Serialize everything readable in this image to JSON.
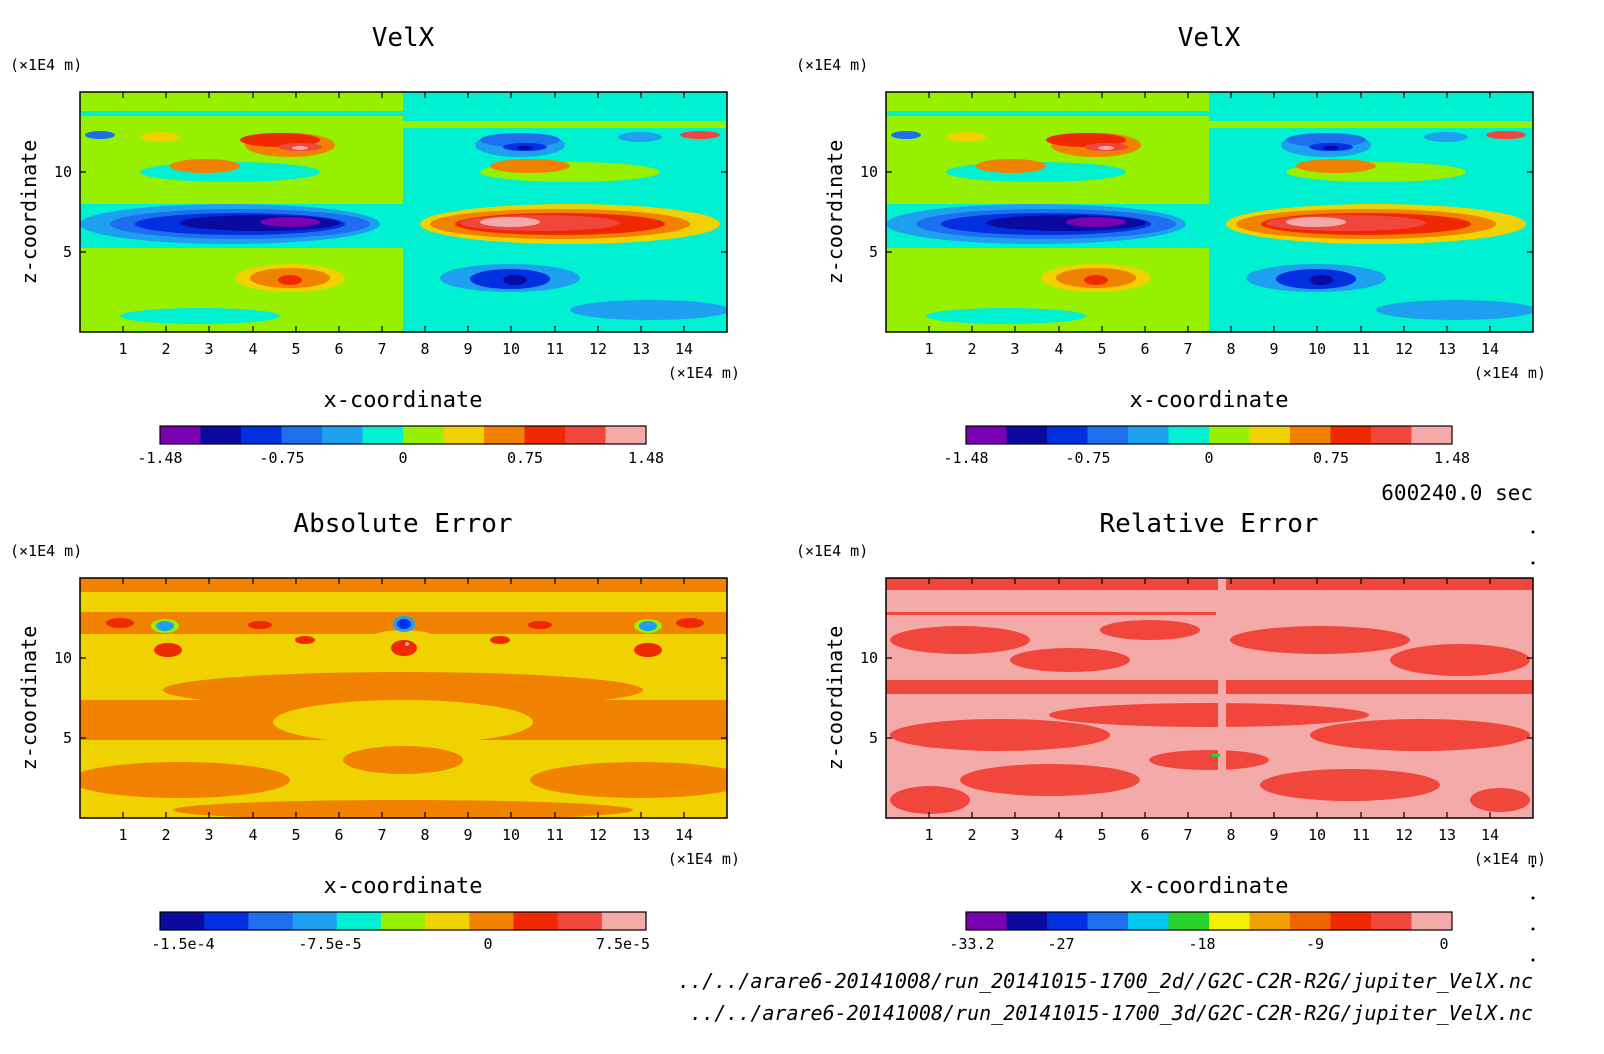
{
  "figure": {
    "time_label": "600240.0 sec",
    "file_paths": [
      "../../arare6-20141008/run_20141015-1700_2d//G2C-C2R-R2G/jupiter_VelX.nc",
      "../../arare6-20141008/run_20141015-1700_3d/G2C-C2R-R2G/jupiter_VelX.nc"
    ]
  },
  "chart_data": [
    {
      "type": "heatmap",
      "title": "VelX",
      "xlabel": "x-coordinate",
      "ylabel": "z-coordinate",
      "x_unit": "(×1E4 m)",
      "y_unit": "(×1E4 m)",
      "xlim": [
        0,
        15
      ],
      "ylim": [
        0,
        15
      ],
      "x_ticks": [
        "1",
        "2",
        "3",
        "4",
        "5",
        "6",
        "7",
        "8",
        "9",
        "10",
        "11",
        "12",
        "13",
        "14"
      ],
      "y_ticks": [
        "5",
        "10"
      ],
      "colorbar": {
        "colors": [
          "#7a00b4",
          "#0a0aa0",
          "#0030e0",
          "#1e6ef0",
          "#1ea0f0",
          "#00f0d2",
          "#96f000",
          "#f0d200",
          "#f08200",
          "#f02800",
          "#f0463c",
          "#f5aaaa"
        ],
        "tick_labels": [
          "-1.48",
          "-0.75",
          "0",
          "0.75",
          "1.48"
        ]
      }
    },
    {
      "type": "heatmap",
      "title": "VelX",
      "xlabel": "x-coordinate",
      "ylabel": "z-coordinate",
      "x_unit": "(×1E4 m)",
      "y_unit": "(×1E4 m)",
      "xlim": [
        0,
        15
      ],
      "ylim": [
        0,
        15
      ],
      "x_ticks": [
        "1",
        "2",
        "3",
        "4",
        "5",
        "6",
        "7",
        "8",
        "9",
        "10",
        "11",
        "12",
        "13",
        "14"
      ],
      "y_ticks": [
        "5",
        "10"
      ],
      "colorbar": {
        "colors": [
          "#7a00b4",
          "#0a0aa0",
          "#0030e0",
          "#1e6ef0",
          "#1ea0f0",
          "#00f0d2",
          "#96f000",
          "#f0d200",
          "#f08200",
          "#f02800",
          "#f0463c",
          "#f5aaaa"
        ],
        "tick_labels": [
          "-1.48",
          "-0.75",
          "0",
          "0.75",
          "1.48"
        ]
      }
    },
    {
      "type": "heatmap",
      "title": "Absolute Error",
      "xlabel": "x-coordinate",
      "ylabel": "z-coordinate",
      "x_unit": "(×1E4 m)",
      "y_unit": "(×1E4 m)",
      "xlim": [
        0,
        15
      ],
      "ylim": [
        0,
        15
      ],
      "x_ticks": [
        "1",
        "2",
        "3",
        "4",
        "5",
        "6",
        "7",
        "8",
        "9",
        "10",
        "11",
        "12",
        "13",
        "14"
      ],
      "y_ticks": [
        "5",
        "10"
      ],
      "colorbar": {
        "colors": [
          "#0a0aa0",
          "#0030e0",
          "#1e6ef0",
          "#1ea0f0",
          "#00f0d2",
          "#96f000",
          "#f0d200",
          "#f08200",
          "#f02800",
          "#f0463c",
          "#f5aaaa"
        ],
        "tick_labels": [
          "-1.5e-4",
          "-7.5e-5",
          "0",
          "7.5e-5"
        ]
      }
    },
    {
      "type": "heatmap",
      "title": "Relative Error",
      "xlabel": "x-coordinate",
      "ylabel": "z-coordinate",
      "x_unit": "(×1E4 m)",
      "y_unit": "(×1E4 m)",
      "xlim": [
        0,
        15
      ],
      "ylim": [
        0,
        15
      ],
      "x_ticks": [
        "1",
        "2",
        "3",
        "4",
        "5",
        "6",
        "7",
        "8",
        "9",
        "10",
        "11",
        "12",
        "13",
        "14"
      ],
      "y_ticks": [
        "5",
        "10"
      ],
      "colorbar": {
        "colors": [
          "#7a00b4",
          "#0a0aa0",
          "#0030e0",
          "#1e6ef0",
          "#00c8f0",
          "#28d228",
          "#f0f000",
          "#f0a000",
          "#f06400",
          "#f02800",
          "#f0463c",
          "#f5aaaa"
        ],
        "tick_labels": [
          "-33.2",
          "-27",
          "-18",
          "-9",
          "0"
        ]
      }
    }
  ]
}
